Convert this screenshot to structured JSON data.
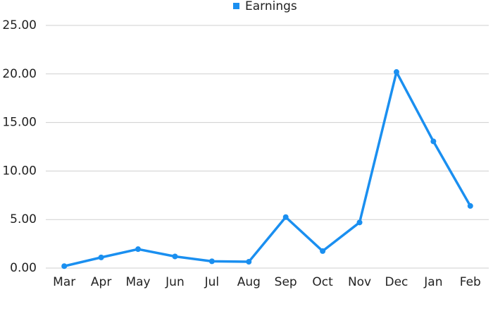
{
  "chart_data": {
    "type": "line",
    "categories": [
      "Mar",
      "Apr",
      "May",
      "Jun",
      "Jul",
      "Aug",
      "Sep",
      "Oct",
      "Nov",
      "Dec",
      "Jan",
      "Feb"
    ],
    "series": [
      {
        "name": "Earnings",
        "color": "#1a8ff0",
        "values": [
          0.2,
          1.1,
          1.95,
          1.2,
          0.7,
          0.65,
          5.25,
          1.75,
          4.7,
          20.2,
          13.05,
          6.4
        ]
      }
    ],
    "ylim": [
      0,
      25
    ],
    "yticks": [
      {
        "value": 0,
        "label": "0.00"
      },
      {
        "value": 5,
        "label": "5.00"
      },
      {
        "value": 10,
        "label": "10.00"
      },
      {
        "value": 15,
        "label": "15.00"
      },
      {
        "value": 20,
        "label": "20.00"
      },
      {
        "value": 25,
        "label": "25.00"
      }
    ],
    "grid": true,
    "legend": "top"
  }
}
